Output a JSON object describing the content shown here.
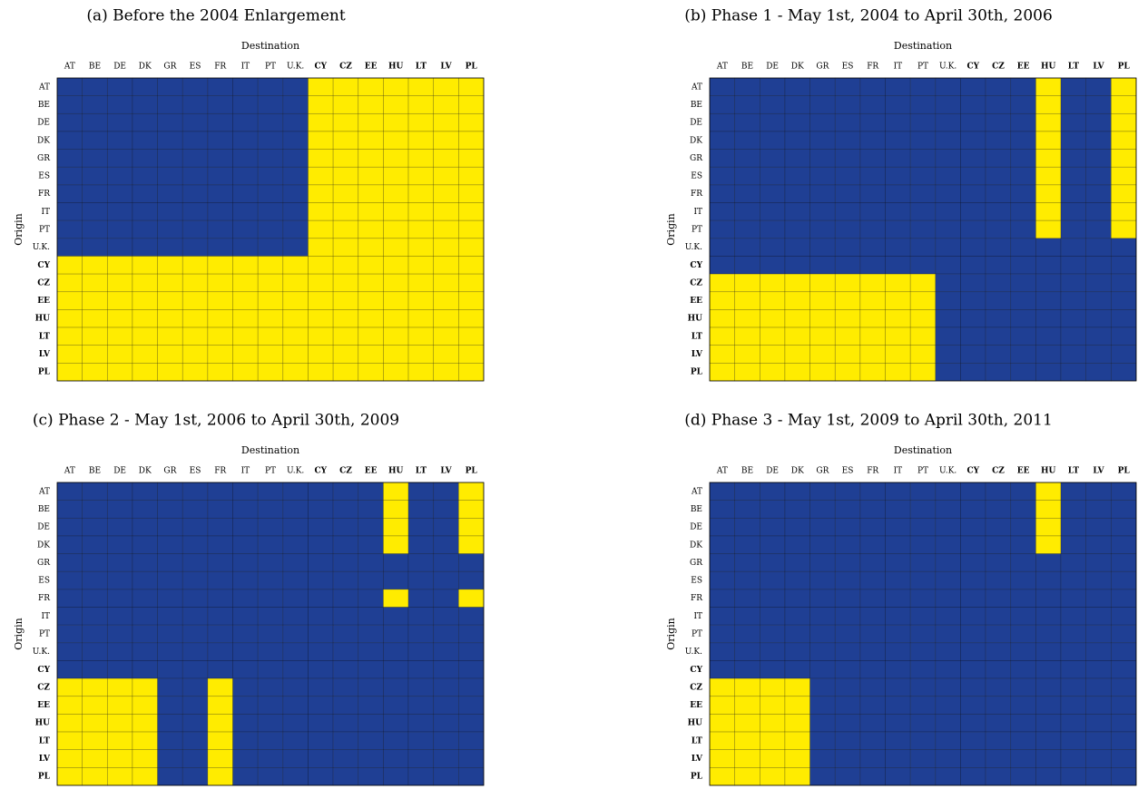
{
  "chart_data": [
    {
      "type": "heatmap",
      "title": "(a) Before the 2004 Enlargement",
      "xlabel": "Destination",
      "ylabel": "Origin",
      "x": [
        "AT",
        "BE",
        "DE",
        "DK",
        "GR",
        "ES",
        "FR",
        "IT",
        "PT",
        "U.K.",
        "CY",
        "CZ",
        "EE",
        "HU",
        "LT",
        "LV",
        "PL"
      ],
      "y": [
        "AT",
        "BE",
        "DE",
        "DK",
        "GR",
        "ES",
        "FR",
        "IT",
        "PT",
        "U.K.",
        "CY",
        "CZ",
        "EE",
        "HU",
        "LT",
        "LV",
        "PL"
      ],
      "colors": [
        "#1f3f94",
        "#ffec00"
      ],
      "values": [
        [
          0,
          0,
          0,
          0,
          0,
          0,
          0,
          0,
          0,
          0,
          1,
          1,
          1,
          1,
          1,
          1,
          1
        ],
        [
          0,
          0,
          0,
          0,
          0,
          0,
          0,
          0,
          0,
          0,
          1,
          1,
          1,
          1,
          1,
          1,
          1
        ],
        [
          0,
          0,
          0,
          0,
          0,
          0,
          0,
          0,
          0,
          0,
          1,
          1,
          1,
          1,
          1,
          1,
          1
        ],
        [
          0,
          0,
          0,
          0,
          0,
          0,
          0,
          0,
          0,
          0,
          1,
          1,
          1,
          1,
          1,
          1,
          1
        ],
        [
          0,
          0,
          0,
          0,
          0,
          0,
          0,
          0,
          0,
          0,
          1,
          1,
          1,
          1,
          1,
          1,
          1
        ],
        [
          0,
          0,
          0,
          0,
          0,
          0,
          0,
          0,
          0,
          0,
          1,
          1,
          1,
          1,
          1,
          1,
          1
        ],
        [
          0,
          0,
          0,
          0,
          0,
          0,
          0,
          0,
          0,
          0,
          1,
          1,
          1,
          1,
          1,
          1,
          1
        ],
        [
          0,
          0,
          0,
          0,
          0,
          0,
          0,
          0,
          0,
          0,
          1,
          1,
          1,
          1,
          1,
          1,
          1
        ],
        [
          0,
          0,
          0,
          0,
          0,
          0,
          0,
          0,
          0,
          0,
          1,
          1,
          1,
          1,
          1,
          1,
          1
        ],
        [
          0,
          0,
          0,
          0,
          0,
          0,
          0,
          0,
          0,
          0,
          1,
          1,
          1,
          1,
          1,
          1,
          1
        ],
        [
          1,
          1,
          1,
          1,
          1,
          1,
          1,
          1,
          1,
          1,
          1,
          1,
          1,
          1,
          1,
          1,
          1
        ],
        [
          1,
          1,
          1,
          1,
          1,
          1,
          1,
          1,
          1,
          1,
          1,
          1,
          1,
          1,
          1,
          1,
          1
        ],
        [
          1,
          1,
          1,
          1,
          1,
          1,
          1,
          1,
          1,
          1,
          1,
          1,
          1,
          1,
          1,
          1,
          1
        ],
        [
          1,
          1,
          1,
          1,
          1,
          1,
          1,
          1,
          1,
          1,
          1,
          1,
          1,
          1,
          1,
          1,
          1
        ],
        [
          1,
          1,
          1,
          1,
          1,
          1,
          1,
          1,
          1,
          1,
          1,
          1,
          1,
          1,
          1,
          1,
          1
        ],
        [
          1,
          1,
          1,
          1,
          1,
          1,
          1,
          1,
          1,
          1,
          1,
          1,
          1,
          1,
          1,
          1,
          1
        ],
        [
          1,
          1,
          1,
          1,
          1,
          1,
          1,
          1,
          1,
          1,
          1,
          1,
          1,
          1,
          1,
          1,
          1
        ]
      ]
    },
    {
      "type": "heatmap",
      "title": "(b) Phase 1 - May 1st, 2004 to April 30th, 2006",
      "xlabel": "Destination",
      "ylabel": "Origin",
      "x": [
        "AT",
        "BE",
        "DE",
        "DK",
        "GR",
        "ES",
        "FR",
        "IT",
        "PT",
        "U.K.",
        "CY",
        "CZ",
        "EE",
        "HU",
        "LT",
        "LV",
        "PL"
      ],
      "y": [
        "AT",
        "BE",
        "DE",
        "DK",
        "GR",
        "ES",
        "FR",
        "IT",
        "PT",
        "U.K.",
        "CY",
        "CZ",
        "EE",
        "HU",
        "LT",
        "LV",
        "PL"
      ],
      "colors": [
        "#1f3f94",
        "#ffec00"
      ],
      "values": [
        [
          0,
          0,
          0,
          0,
          0,
          0,
          0,
          0,
          0,
          0,
          0,
          0,
          0,
          1,
          0,
          0,
          1
        ],
        [
          0,
          0,
          0,
          0,
          0,
          0,
          0,
          0,
          0,
          0,
          0,
          0,
          0,
          1,
          0,
          0,
          1
        ],
        [
          0,
          0,
          0,
          0,
          0,
          0,
          0,
          0,
          0,
          0,
          0,
          0,
          0,
          1,
          0,
          0,
          1
        ],
        [
          0,
          0,
          0,
          0,
          0,
          0,
          0,
          0,
          0,
          0,
          0,
          0,
          0,
          1,
          0,
          0,
          1
        ],
        [
          0,
          0,
          0,
          0,
          0,
          0,
          0,
          0,
          0,
          0,
          0,
          0,
          0,
          1,
          0,
          0,
          1
        ],
        [
          0,
          0,
          0,
          0,
          0,
          0,
          0,
          0,
          0,
          0,
          0,
          0,
          0,
          1,
          0,
          0,
          1
        ],
        [
          0,
          0,
          0,
          0,
          0,
          0,
          0,
          0,
          0,
          0,
          0,
          0,
          0,
          1,
          0,
          0,
          1
        ],
        [
          0,
          0,
          0,
          0,
          0,
          0,
          0,
          0,
          0,
          0,
          0,
          0,
          0,
          1,
          0,
          0,
          1
        ],
        [
          0,
          0,
          0,
          0,
          0,
          0,
          0,
          0,
          0,
          0,
          0,
          0,
          0,
          1,
          0,
          0,
          1
        ],
        [
          0,
          0,
          0,
          0,
          0,
          0,
          0,
          0,
          0,
          0,
          0,
          0,
          0,
          0,
          0,
          0,
          0
        ],
        [
          0,
          0,
          0,
          0,
          0,
          0,
          0,
          0,
          0,
          0,
          0,
          0,
          0,
          0,
          0,
          0,
          0
        ],
        [
          1,
          1,
          1,
          1,
          1,
          1,
          1,
          1,
          1,
          0,
          0,
          0,
          0,
          0,
          0,
          0,
          0
        ],
        [
          1,
          1,
          1,
          1,
          1,
          1,
          1,
          1,
          1,
          0,
          0,
          0,
          0,
          0,
          0,
          0,
          0
        ],
        [
          1,
          1,
          1,
          1,
          1,
          1,
          1,
          1,
          1,
          0,
          0,
          0,
          0,
          0,
          0,
          0,
          0
        ],
        [
          1,
          1,
          1,
          1,
          1,
          1,
          1,
          1,
          1,
          0,
          0,
          0,
          0,
          0,
          0,
          0,
          0
        ],
        [
          1,
          1,
          1,
          1,
          1,
          1,
          1,
          1,
          1,
          0,
          0,
          0,
          0,
          0,
          0,
          0,
          0
        ],
        [
          1,
          1,
          1,
          1,
          1,
          1,
          1,
          1,
          1,
          0,
          0,
          0,
          0,
          0,
          0,
          0,
          0
        ]
      ]
    },
    {
      "type": "heatmap",
      "title": "(c) Phase 2 - May 1st, 2006 to April 30th, 2009",
      "xlabel": "Destination",
      "ylabel": "Origin",
      "x": [
        "AT",
        "BE",
        "DE",
        "DK",
        "GR",
        "ES",
        "FR",
        "IT",
        "PT",
        "U.K.",
        "CY",
        "CZ",
        "EE",
        "HU",
        "LT",
        "LV",
        "PL"
      ],
      "y": [
        "AT",
        "BE",
        "DE",
        "DK",
        "GR",
        "ES",
        "FR",
        "IT",
        "PT",
        "U.K.",
        "CY",
        "CZ",
        "EE",
        "HU",
        "LT",
        "LV",
        "PL"
      ],
      "colors": [
        "#1f3f94",
        "#ffec00"
      ],
      "values": [
        [
          0,
          0,
          0,
          0,
          0,
          0,
          0,
          0,
          0,
          0,
          0,
          0,
          0,
          1,
          0,
          0,
          1
        ],
        [
          0,
          0,
          0,
          0,
          0,
          0,
          0,
          0,
          0,
          0,
          0,
          0,
          0,
          1,
          0,
          0,
          1
        ],
        [
          0,
          0,
          0,
          0,
          0,
          0,
          0,
          0,
          0,
          0,
          0,
          0,
          0,
          1,
          0,
          0,
          1
        ],
        [
          0,
          0,
          0,
          0,
          0,
          0,
          0,
          0,
          0,
          0,
          0,
          0,
          0,
          1,
          0,
          0,
          1
        ],
        [
          0,
          0,
          0,
          0,
          0,
          0,
          0,
          0,
          0,
          0,
          0,
          0,
          0,
          0,
          0,
          0,
          0
        ],
        [
          0,
          0,
          0,
          0,
          0,
          0,
          0,
          0,
          0,
          0,
          0,
          0,
          0,
          0,
          0,
          0,
          0
        ],
        [
          0,
          0,
          0,
          0,
          0,
          0,
          0,
          0,
          0,
          0,
          0,
          0,
          0,
          1,
          0,
          0,
          1
        ],
        [
          0,
          0,
          0,
          0,
          0,
          0,
          0,
          0,
          0,
          0,
          0,
          0,
          0,
          0,
          0,
          0,
          0
        ],
        [
          0,
          0,
          0,
          0,
          0,
          0,
          0,
          0,
          0,
          0,
          0,
          0,
          0,
          0,
          0,
          0,
          0
        ],
        [
          0,
          0,
          0,
          0,
          0,
          0,
          0,
          0,
          0,
          0,
          0,
          0,
          0,
          0,
          0,
          0,
          0
        ],
        [
          0,
          0,
          0,
          0,
          0,
          0,
          0,
          0,
          0,
          0,
          0,
          0,
          0,
          0,
          0,
          0,
          0
        ],
        [
          1,
          1,
          1,
          1,
          0,
          0,
          1,
          0,
          0,
          0,
          0,
          0,
          0,
          0,
          0,
          0,
          0
        ],
        [
          1,
          1,
          1,
          1,
          0,
          0,
          1,
          0,
          0,
          0,
          0,
          0,
          0,
          0,
          0,
          0,
          0
        ],
        [
          1,
          1,
          1,
          1,
          0,
          0,
          1,
          0,
          0,
          0,
          0,
          0,
          0,
          0,
          0,
          0,
          0
        ],
        [
          1,
          1,
          1,
          1,
          0,
          0,
          1,
          0,
          0,
          0,
          0,
          0,
          0,
          0,
          0,
          0,
          0
        ],
        [
          1,
          1,
          1,
          1,
          0,
          0,
          1,
          0,
          0,
          0,
          0,
          0,
          0,
          0,
          0,
          0,
          0
        ],
        [
          1,
          1,
          1,
          1,
          0,
          0,
          1,
          0,
          0,
          0,
          0,
          0,
          0,
          0,
          0,
          0,
          0
        ]
      ]
    },
    {
      "type": "heatmap",
      "title": "(d) Phase 3 - May 1st, 2009 to April 30th, 2011",
      "xlabel": "Destination",
      "ylabel": "Origin",
      "x": [
        "AT",
        "BE",
        "DE",
        "DK",
        "GR",
        "ES",
        "FR",
        "IT",
        "PT",
        "U.K.",
        "CY",
        "CZ",
        "EE",
        "HU",
        "LT",
        "LV",
        "PL"
      ],
      "y": [
        "AT",
        "BE",
        "DE",
        "DK",
        "GR",
        "ES",
        "FR",
        "IT",
        "PT",
        "U.K.",
        "CY",
        "CZ",
        "EE",
        "HU",
        "LT",
        "LV",
        "PL"
      ],
      "colors": [
        "#1f3f94",
        "#ffec00"
      ],
      "values": [
        [
          0,
          0,
          0,
          0,
          0,
          0,
          0,
          0,
          0,
          0,
          0,
          0,
          0,
          1,
          0,
          0,
          0
        ],
        [
          0,
          0,
          0,
          0,
          0,
          0,
          0,
          0,
          0,
          0,
          0,
          0,
          0,
          1,
          0,
          0,
          0
        ],
        [
          0,
          0,
          0,
          0,
          0,
          0,
          0,
          0,
          0,
          0,
          0,
          0,
          0,
          1,
          0,
          0,
          0
        ],
        [
          0,
          0,
          0,
          0,
          0,
          0,
          0,
          0,
          0,
          0,
          0,
          0,
          0,
          1,
          0,
          0,
          0
        ],
        [
          0,
          0,
          0,
          0,
          0,
          0,
          0,
          0,
          0,
          0,
          0,
          0,
          0,
          0,
          0,
          0,
          0
        ],
        [
          0,
          0,
          0,
          0,
          0,
          0,
          0,
          0,
          0,
          0,
          0,
          0,
          0,
          0,
          0,
          0,
          0
        ],
        [
          0,
          0,
          0,
          0,
          0,
          0,
          0,
          0,
          0,
          0,
          0,
          0,
          0,
          0,
          0,
          0,
          0
        ],
        [
          0,
          0,
          0,
          0,
          0,
          0,
          0,
          0,
          0,
          0,
          0,
          0,
          0,
          0,
          0,
          0,
          0
        ],
        [
          0,
          0,
          0,
          0,
          0,
          0,
          0,
          0,
          0,
          0,
          0,
          0,
          0,
          0,
          0,
          0,
          0
        ],
        [
          0,
          0,
          0,
          0,
          0,
          0,
          0,
          0,
          0,
          0,
          0,
          0,
          0,
          0,
          0,
          0,
          0
        ],
        [
          0,
          0,
          0,
          0,
          0,
          0,
          0,
          0,
          0,
          0,
          0,
          0,
          0,
          0,
          0,
          0,
          0
        ],
        [
          1,
          1,
          1,
          1,
          0,
          0,
          0,
          0,
          0,
          0,
          0,
          0,
          0,
          0,
          0,
          0,
          0
        ],
        [
          1,
          1,
          1,
          1,
          0,
          0,
          0,
          0,
          0,
          0,
          0,
          0,
          0,
          0,
          0,
          0,
          0
        ],
        [
          1,
          1,
          1,
          1,
          0,
          0,
          0,
          0,
          0,
          0,
          0,
          0,
          0,
          0,
          0,
          0,
          0
        ],
        [
          1,
          1,
          1,
          1,
          0,
          0,
          0,
          0,
          0,
          0,
          0,
          0,
          0,
          0,
          0,
          0,
          0
        ],
        [
          1,
          1,
          1,
          1,
          0,
          0,
          0,
          0,
          0,
          0,
          0,
          0,
          0,
          0,
          0,
          0,
          0
        ],
        [
          1,
          1,
          1,
          1,
          0,
          0,
          0,
          0,
          0,
          0,
          0,
          0,
          0,
          0,
          0,
          0,
          0
        ]
      ]
    }
  ]
}
